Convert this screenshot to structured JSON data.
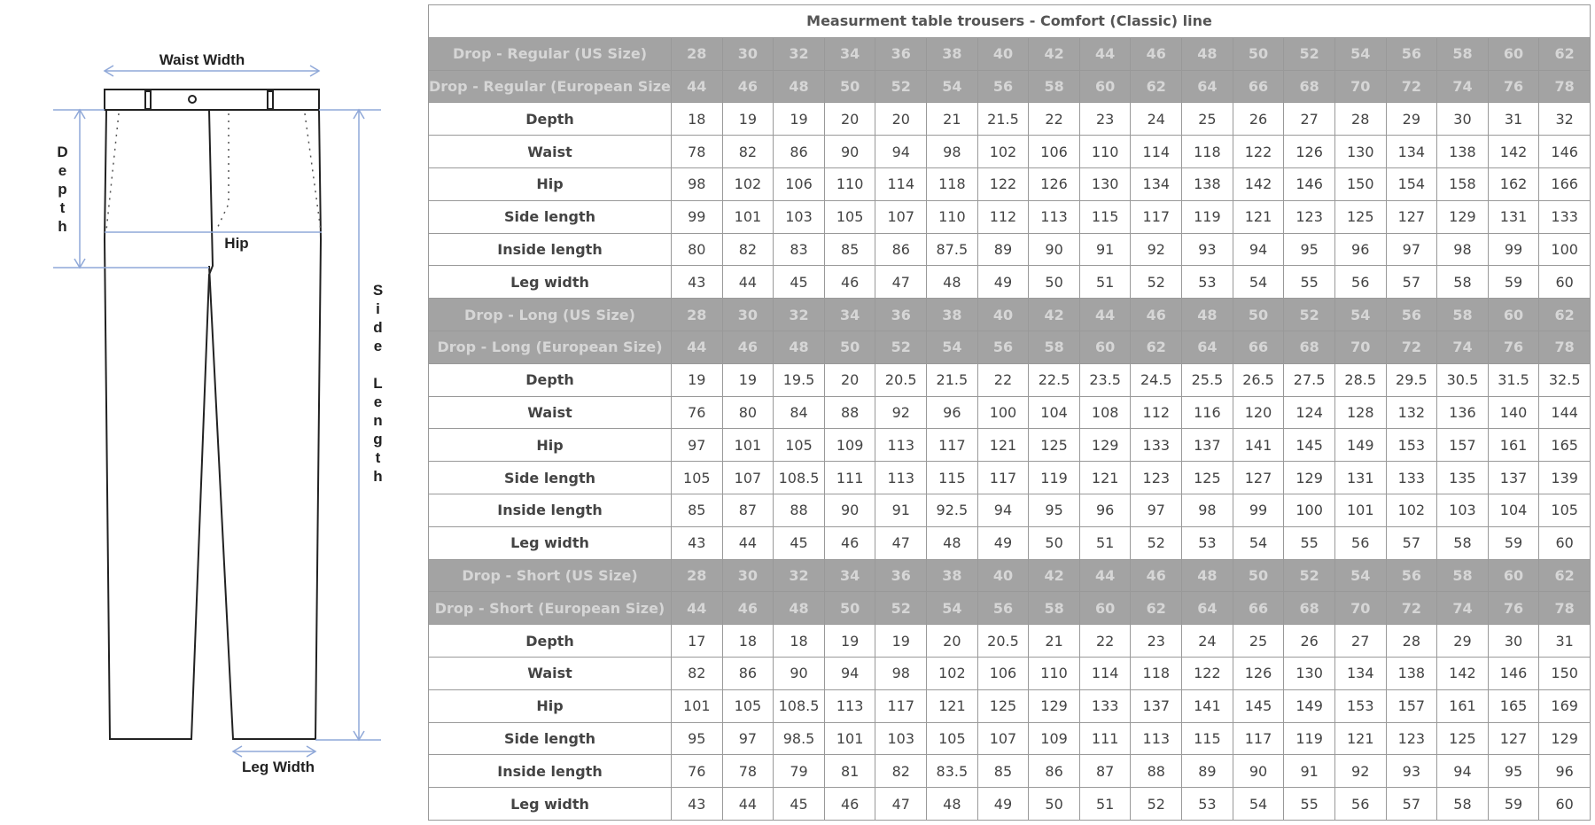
{
  "diagram": {
    "waist_label": "Waist Width",
    "depth_label": "Depth",
    "hip_label": "Hip",
    "side_length_label": "Side Length",
    "leg_width_label": "Leg Width"
  },
  "table": {
    "title": "Measurment table trousers - Comfort (Classic) line",
    "sections": [
      {
        "headers": [
          [
            "Drop - Regular (US Size)",
            28,
            30,
            32,
            34,
            36,
            38,
            40,
            42,
            44,
            46,
            48,
            50,
            52,
            54,
            56,
            58,
            60,
            62
          ],
          [
            "Drop - Regular (European Size)",
            44,
            46,
            48,
            50,
            52,
            54,
            56,
            58,
            60,
            62,
            64,
            66,
            68,
            70,
            72,
            74,
            76,
            78
          ]
        ],
        "rows": [
          [
            "Depth",
            18,
            19,
            19,
            20,
            20,
            21,
            21.5,
            22,
            23,
            24,
            25,
            26,
            27,
            28,
            29,
            30,
            31,
            32
          ],
          [
            "Waist",
            78,
            82,
            86,
            90,
            94,
            98,
            102,
            106,
            110,
            114,
            118,
            122,
            126,
            130,
            134,
            138,
            142,
            146
          ],
          [
            "Hip",
            98,
            102,
            106,
            110,
            114,
            118,
            122,
            126,
            130,
            134,
            138,
            142,
            146,
            150,
            154,
            158,
            162,
            166
          ],
          [
            "Side length",
            99,
            101,
            103,
            105,
            107,
            110,
            112,
            113,
            115,
            117,
            119,
            121,
            123,
            125,
            127,
            129,
            131,
            133
          ],
          [
            "Inside length",
            80,
            82,
            83,
            85,
            86,
            87.5,
            89,
            90,
            91,
            92,
            93,
            94,
            95,
            96,
            97,
            98,
            99,
            100
          ],
          [
            "Leg width",
            43,
            44,
            45,
            46,
            47,
            48,
            49,
            50,
            51,
            52,
            53,
            54,
            55,
            56,
            57,
            58,
            59,
            60
          ]
        ]
      },
      {
        "headers": [
          [
            "Drop - Long (US Size)",
            28,
            30,
            32,
            34,
            36,
            38,
            40,
            42,
            44,
            46,
            48,
            50,
            52,
            54,
            56,
            58,
            60,
            62
          ],
          [
            "Drop - Long (European Size)",
            44,
            46,
            48,
            50,
            52,
            54,
            56,
            58,
            60,
            62,
            64,
            66,
            68,
            70,
            72,
            74,
            76,
            78
          ]
        ],
        "rows": [
          [
            "Depth",
            19,
            19,
            19.5,
            20,
            20.5,
            21.5,
            22,
            22.5,
            23.5,
            24.5,
            25.5,
            26.5,
            27.5,
            28.5,
            29.5,
            30.5,
            31.5,
            32.5
          ],
          [
            "Waist",
            76,
            80,
            84,
            88,
            92,
            96,
            100,
            104,
            108,
            112,
            116,
            120,
            124,
            128,
            132,
            136,
            140,
            144
          ],
          [
            "Hip",
            97,
            101,
            105,
            109,
            113,
            117,
            121,
            125,
            129,
            133,
            137,
            141,
            145,
            149,
            153,
            157,
            161,
            165
          ],
          [
            "Side length",
            105,
            107,
            108.5,
            111,
            113,
            115,
            117,
            119,
            121,
            123,
            125,
            127,
            129,
            131,
            133,
            135,
            137,
            139
          ],
          [
            "Inside length",
            85,
            87,
            88,
            90,
            91,
            92.5,
            94,
            95,
            96,
            97,
            98,
            99,
            100,
            101,
            102,
            103,
            104,
            105
          ],
          [
            "Leg width",
            43,
            44,
            45,
            46,
            47,
            48,
            49,
            50,
            51,
            52,
            53,
            54,
            55,
            56,
            57,
            58,
            59,
            60
          ]
        ]
      },
      {
        "headers": [
          [
            "Drop - Short (US Size)",
            28,
            30,
            32,
            34,
            36,
            38,
            40,
            42,
            44,
            46,
            48,
            50,
            52,
            54,
            56,
            58,
            60,
            62
          ],
          [
            "Drop - Short (European Size)",
            44,
            46,
            48,
            50,
            52,
            54,
            56,
            58,
            60,
            62,
            64,
            66,
            68,
            70,
            72,
            74,
            76,
            78
          ]
        ],
        "rows": [
          [
            "Depth",
            17,
            18,
            18,
            19,
            19,
            20,
            20.5,
            21,
            22,
            23,
            24,
            25,
            26,
            27,
            28,
            29,
            30,
            31
          ],
          [
            "Waist",
            82,
            86,
            90,
            94,
            98,
            102,
            106,
            110,
            114,
            118,
            122,
            126,
            130,
            134,
            138,
            142,
            146,
            150
          ],
          [
            "Hip",
            101,
            105,
            108.5,
            113,
            117,
            121,
            125,
            129,
            133,
            137,
            141,
            145,
            149,
            153,
            157,
            161,
            165,
            169
          ],
          [
            "Side length",
            95,
            97,
            98.5,
            101,
            103,
            105,
            107,
            109,
            111,
            113,
            115,
            117,
            119,
            121,
            123,
            125,
            127,
            129
          ],
          [
            "Inside length",
            76,
            78,
            79,
            81,
            82,
            83.5,
            85,
            86,
            87,
            88,
            89,
            90,
            91,
            92,
            93,
            94,
            95,
            96
          ],
          [
            "Leg width",
            43,
            44,
            45,
            46,
            47,
            48,
            49,
            50,
            51,
            52,
            53,
            54,
            55,
            56,
            57,
            58,
            59,
            60
          ]
        ]
      }
    ]
  }
}
